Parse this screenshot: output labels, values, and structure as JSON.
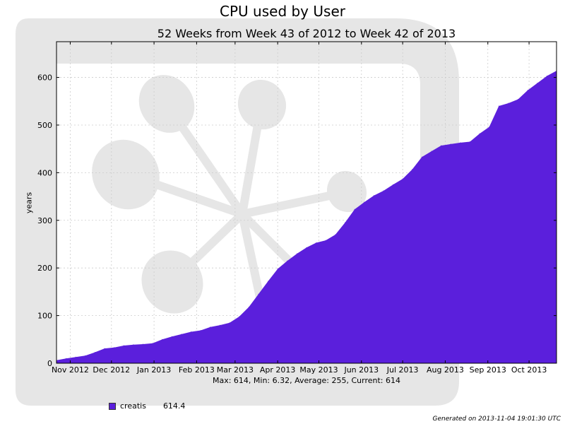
{
  "chart_data": {
    "type": "area",
    "title": "CPU used by User",
    "subtitle": "52 Weeks from Week 43 of 2012 to Week 42 of 2013",
    "ylabel": "years",
    "xlabel": "",
    "ylim": [
      0,
      675
    ],
    "yticks": [
      0,
      100,
      200,
      300,
      400,
      500,
      600
    ],
    "xticks": [
      "Nov 2012",
      "Dec 2012",
      "Jan 2013",
      "Feb 2013",
      "Mar 2013",
      "Apr 2013",
      "May 2013",
      "Jun 2013",
      "Jul 2013",
      "Aug 2013",
      "Sep 2013",
      "Oct 2013"
    ],
    "grid": true,
    "series": [
      {
        "name": "creatis",
        "color": "#5b1fdc",
        "x": [
          "2012-10-22",
          "2012-10-29",
          "2012-11-05",
          "2012-11-12",
          "2012-11-19",
          "2012-11-26",
          "2012-12-03",
          "2012-12-10",
          "2012-12-17",
          "2012-12-24",
          "2012-12-31",
          "2013-01-07",
          "2013-01-14",
          "2013-01-21",
          "2013-01-28",
          "2013-02-04",
          "2013-02-11",
          "2013-02-18",
          "2013-02-25",
          "2013-03-04",
          "2013-03-11",
          "2013-03-18",
          "2013-03-25",
          "2013-04-01",
          "2013-04-08",
          "2013-04-15",
          "2013-04-22",
          "2013-04-29",
          "2013-05-06",
          "2013-05-13",
          "2013-05-20",
          "2013-05-27",
          "2013-06-03",
          "2013-06-10",
          "2013-06-17",
          "2013-06-24",
          "2013-07-01",
          "2013-07-08",
          "2013-07-15",
          "2013-07-22",
          "2013-07-29",
          "2013-08-05",
          "2013-08-12",
          "2013-08-19",
          "2013-08-26",
          "2013-09-02",
          "2013-09-09",
          "2013-09-16",
          "2013-09-23",
          "2013-09-30",
          "2013-10-07",
          "2013-10-14",
          "2013-10-21"
        ],
        "values": [
          6.32,
          10,
          13,
          16,
          23,
          31,
          33,
          37,
          39,
          40,
          42,
          50,
          56,
          61,
          66,
          69,
          76,
          80,
          85,
          98,
          118,
          145,
          172,
          198,
          215,
          230,
          243,
          253,
          258,
          270,
          295,
          323,
          338,
          352,
          362,
          375,
          387,
          407,
          433,
          445,
          457,
          460,
          463,
          465,
          482,
          496,
          540,
          546,
          554,
          573,
          588,
          603,
          614
        ]
      }
    ]
  },
  "stats_text": "Max: 614, Min: 6.32, Average: 255, Current: 614",
  "legend": {
    "label": "creatis",
    "value": "614.4"
  },
  "generated_text": "Generated on 2013-11-04 19:01:30 UTC"
}
